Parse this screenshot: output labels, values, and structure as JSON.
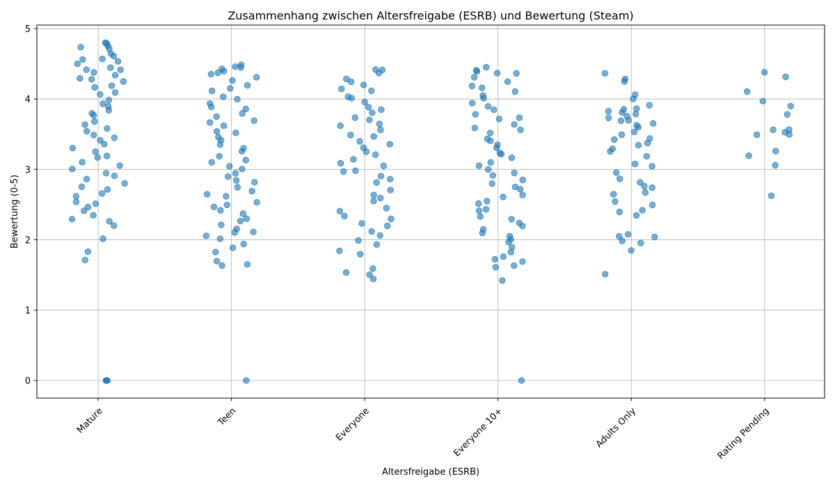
{
  "chart_data": {
    "type": "scatter",
    "title": "Zusammenhang zwischen Altersfreigabe (ESRB) und Bewertung (Steam)",
    "xlabel": "Altersfreigabe (ESRB)",
    "ylabel": "Bewertung (0-5)",
    "categories": [
      "Mature",
      "Teen",
      "Everyone",
      "Everyone 10+",
      "Adults Only",
      "Rating Pending"
    ],
    "xlim": [
      -0.46,
      5.45
    ],
    "ylim": [
      -0.25,
      5.05
    ],
    "yticks": [
      "0",
      "1",
      "2",
      "3",
      "4",
      "5"
    ],
    "grid": true,
    "marker_color": "#1f77b4",
    "series": [
      {
        "values": [
          4.8,
          4.78,
          4.75,
          4.72,
          4.7,
          4.65,
          4.62,
          4.58,
          4.55,
          4.52,
          4.5,
          4.45,
          4.42,
          4.4,
          4.38,
          4.35,
          4.3,
          4.28,
          4.25,
          4.2,
          4.15,
          4.1,
          4.05,
          4.0,
          3.95,
          3.9,
          3.85,
          3.8,
          3.75,
          3.7,
          3.65,
          3.6,
          3.55,
          3.5,
          3.45,
          3.4,
          3.35,
          3.3,
          3.25,
          3.2,
          3.15,
          3.1,
          3.05,
          3.0,
          2.95,
          2.9,
          2.85,
          2.8,
          2.75,
          2.7,
          2.65,
          2.6,
          2.55,
          2.5,
          2.45,
          2.4,
          2.35,
          2.3,
          2.25,
          2.18,
          2.0,
          1.85,
          1.71,
          0.0,
          0.0,
          0.0
        ]
      },
      {
        "values": [
          4.5,
          4.47,
          4.45,
          4.42,
          4.4,
          4.38,
          4.35,
          4.3,
          4.25,
          4.2,
          4.15,
          4.1,
          4.05,
          4.0,
          3.95,
          3.9,
          3.85,
          3.8,
          3.75,
          3.7,
          3.65,
          3.6,
          3.55,
          3.5,
          3.45,
          3.4,
          3.35,
          3.3,
          3.25,
          3.2,
          3.15,
          3.1,
          3.05,
          3.0,
          2.95,
          2.9,
          2.85,
          2.8,
          2.75,
          2.7,
          2.65,
          2.6,
          2.55,
          2.5,
          2.45,
          2.4,
          2.35,
          2.3,
          2.25,
          2.2,
          2.15,
          2.12,
          2.1,
          2.05,
          2.0,
          1.92,
          1.87,
          1.84,
          1.68,
          1.66,
          1.62,
          0.0
        ]
      },
      {
        "values": [
          4.43,
          4.4,
          4.38,
          4.3,
          4.25,
          4.2,
          4.15,
          4.1,
          4.05,
          4.0,
          3.95,
          3.9,
          3.85,
          3.8,
          3.75,
          3.7,
          3.65,
          3.6,
          3.55,
          3.5,
          3.45,
          3.4,
          3.35,
          3.3,
          3.25,
          3.2,
          3.15,
          3.1,
          3.05,
          3.0,
          2.95,
          2.9,
          2.85,
          2.8,
          2.7,
          2.65,
          2.6,
          2.55,
          2.45,
          2.4,
          2.35,
          2.3,
          2.25,
          2.2,
          2.1,
          2.05,
          2.0,
          1.95,
          1.83,
          1.78,
          1.6,
          1.55,
          1.5,
          1.46
        ]
      },
      {
        "values": [
          4.46,
          4.42,
          4.4,
          4.38,
          4.35,
          4.3,
          4.25,
          4.2,
          4.15,
          4.1,
          4.05,
          4.0,
          3.95,
          3.9,
          3.85,
          3.8,
          3.75,
          3.7,
          3.65,
          3.6,
          3.55,
          3.5,
          3.45,
          3.4,
          3.35,
          3.3,
          3.25,
          3.2,
          3.15,
          3.1,
          3.05,
          3.0,
          2.95,
          2.9,
          2.85,
          2.8,
          2.75,
          2.7,
          2.65,
          2.6,
          2.55,
          2.5,
          2.45,
          2.4,
          2.35,
          2.3,
          2.25,
          2.2,
          2.15,
          2.1,
          2.05,
          2.0,
          1.95,
          1.9,
          1.84,
          1.77,
          1.74,
          1.69,
          1.62,
          1.6,
          1.44,
          0.0
        ]
      },
      {
        "values": [
          4.37,
          4.3,
          4.25,
          4.05,
          4.02,
          3.93,
          3.88,
          3.86,
          3.84,
          3.79,
          3.77,
          3.74,
          3.72,
          3.7,
          3.68,
          3.66,
          3.64,
          3.6,
          3.55,
          3.5,
          3.45,
          3.42,
          3.36,
          3.33,
          3.28,
          3.25,
          3.2,
          3.08,
          3.04,
          2.94,
          2.85,
          2.8,
          2.78,
          2.72,
          2.68,
          2.66,
          2.55,
          2.5,
          2.43,
          2.39,
          2.35,
          2.08,
          2.06,
          2.03,
          2.0,
          1.94,
          1.84,
          1.52
        ]
      },
      {
        "values": [
          4.36,
          4.3,
          4.1,
          3.97,
          3.88,
          3.8,
          3.58,
          3.55,
          3.52,
          3.5,
          3.49,
          3.25,
          3.2,
          3.04,
          2.63
        ]
      }
    ]
  }
}
